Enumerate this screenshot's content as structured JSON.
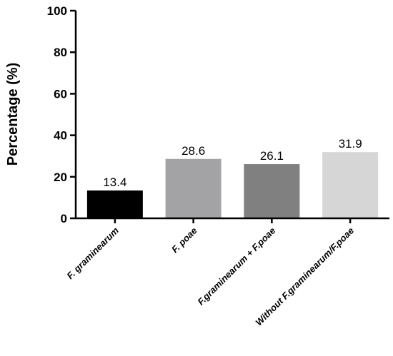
{
  "chart_data": {
    "type": "bar",
    "title": "",
    "xlabel": "",
    "ylabel": "Percentage (%)",
    "ylim": [
      0,
      100
    ],
    "yticks": [
      0,
      20,
      40,
      60,
      80,
      100
    ],
    "grid": false,
    "categories": [
      "F. graminearum",
      "F. poae",
      "F.graminearum + F.poae",
      "Without F.graminearum/F.poae"
    ],
    "values": [
      13.4,
      28.6,
      26.1,
      31.9
    ],
    "value_labels": [
      "13.4",
      "28.6",
      "26.1",
      "31.9"
    ],
    "colors": [
      "#000000",
      "#a3a3a5",
      "#808080",
      "#d6d6d6"
    ]
  }
}
